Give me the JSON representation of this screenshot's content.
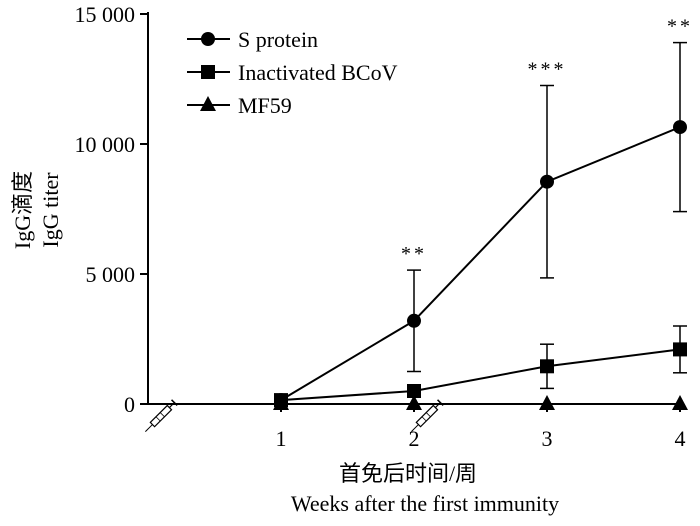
{
  "chart_data": {
    "type": "line",
    "xlabel_cn": "首免后时间/周",
    "xlabel_en": "Weeks after the first immunity",
    "ylabel_cn": "IgG滴度",
    "ylabel_en": "IgG titer",
    "x": [
      1,
      2,
      3,
      4
    ],
    "xlim": [
      0,
      4
    ],
    "x_tick_labels": [
      "1",
      "2",
      "3",
      "4"
    ],
    "ylim": [
      0,
      15000
    ],
    "y_ticks": [
      0,
      5000,
      10000,
      15000
    ],
    "y_tick_labels": [
      "0",
      "5 000",
      "10 000",
      "15 000"
    ],
    "legend_position": "top-left",
    "series": [
      {
        "name": "S protein",
        "marker": "circle",
        "values": [
          150,
          3200,
          8550,
          10650
        ],
        "errors": [
          80,
          1950,
          3700,
          3250
        ]
      },
      {
        "name": "Inactivated BCoV",
        "marker": "square",
        "values": [
          150,
          500,
          1450,
          2100
        ],
        "errors": [
          60,
          200,
          850,
          900
        ]
      },
      {
        "name": "MF59",
        "marker": "triangle",
        "values": [
          0,
          0,
          0,
          0
        ],
        "errors": [
          0,
          0,
          0,
          0
        ]
      }
    ],
    "significance": [
      {
        "x": 2,
        "label": "**"
      },
      {
        "x": 3,
        "label": "***"
      },
      {
        "x": 4,
        "label": "**"
      }
    ],
    "syringe_markers_at_x": [
      0,
      2
    ],
    "colors": {
      "line": "#000000",
      "background": "#ffffff"
    }
  }
}
